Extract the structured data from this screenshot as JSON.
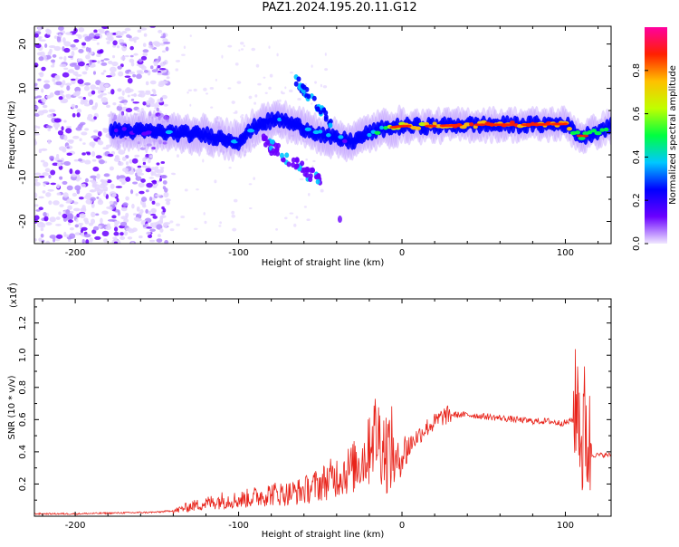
{
  "page": {
    "title": "PAZ1.2024.195.20.11.G12"
  },
  "chart_data": [
    {
      "type": "heatmap",
      "title": "PAZ1.2024.195.20.11.G12",
      "xlabel": "Height of straight line (km)",
      "ylabel": "Frequency (Hz)",
      "xlim": [
        -225,
        128
      ],
      "ylim": [
        -25,
        24
      ],
      "xticks": [
        -200,
        -100,
        0,
        100
      ],
      "xtick_labels": [
        "-200",
        "-100",
        "0",
        "100"
      ],
      "yticks": [
        -20,
        -10,
        0,
        10,
        20
      ],
      "ytick_labels": [
        "-20",
        "-10",
        "0",
        "10",
        "20"
      ],
      "grid": false,
      "colorbar": {
        "label": "Normalized spectral amplitude",
        "range": [
          0.0,
          1.0
        ],
        "ticks": [
          0.0,
          0.2,
          0.4,
          0.6,
          0.8
        ],
        "tick_labels": [
          "0.0",
          "0.2",
          "0.4",
          "0.6",
          "0.8"
        ],
        "colormap": [
          "#f0e8ff",
          "#6a00ff",
          "#0000ff",
          "#00c8ff",
          "#00ff40",
          "#c0ff00",
          "#ffc000",
          "#ff2000",
          "#ff00a0"
        ]
      },
      "ridge": {
        "description_points_x": [
          -175,
          -150,
          -120,
          -100,
          -88,
          -75,
          -60,
          -45,
          -30,
          -20,
          -10,
          0,
          20,
          40,
          60,
          80,
          100,
          110,
          128
        ],
        "frequency_y": [
          0.5,
          0.2,
          -0.5,
          -2,
          2,
          3,
          1,
          -1,
          -2,
          0,
          1,
          1.5,
          1.5,
          1.8,
          1.8,
          1.8,
          2.0,
          -1,
          1.5
        ],
        "amplitude": [
          0.25,
          0.3,
          0.35,
          0.35,
          0.3,
          0.35,
          0.4,
          0.35,
          0.3,
          0.4,
          0.6,
          0.75,
          0.8,
          0.85,
          0.9,
          0.9,
          0.8,
          0.5,
          0.6
        ]
      },
      "branch": {
        "x": [
          -65,
          -55,
          -45
        ],
        "y": [
          12,
          7,
          3
        ]
      },
      "lower_branch": {
        "x": [
          -80,
          -70,
          -55
        ],
        "y": [
          -3,
          -6,
          -10
        ]
      }
    },
    {
      "type": "line",
      "title": "",
      "xlabel": "Height of straight line (km)",
      "ylabel": "SNR (10 * v/v)",
      "y_multiplier_label": "(x10",
      "y_multiplier_exp": "4",
      "xlim": [
        -225,
        128
      ],
      "ylim": [
        0,
        1.35
      ],
      "xticks": [
        -200,
        -100,
        0,
        100
      ],
      "xtick_labels": [
        "-200",
        "-100",
        "0",
        "100"
      ],
      "yticks": [
        0.2,
        0.4,
        0.6,
        0.8,
        1.0,
        1.2
      ],
      "ytick_labels": [
        "0.2",
        "0.4",
        "0.6",
        "0.8",
        "1.0",
        "1.2"
      ],
      "grid": false,
      "series": [
        {
          "color": "#e8231a",
          "x": [
            -225,
            -200,
            -175,
            -150,
            -140,
            -130,
            -120,
            -110,
            -100,
            -90,
            -80,
            -70,
            -60,
            -50,
            -40,
            -30,
            -25,
            -20,
            -15,
            -10,
            -5,
            0,
            5,
            10,
            15,
            20,
            25,
            30,
            40,
            50,
            60,
            70,
            80,
            90,
            95,
            100,
            105,
            108,
            110,
            112,
            114,
            116,
            120,
            128
          ],
          "y": [
            0.01,
            0.01,
            0.015,
            0.02,
            0.03,
            0.06,
            0.08,
            0.1,
            0.1,
            0.12,
            0.14,
            0.14,
            0.16,
            0.2,
            0.25,
            0.3,
            0.35,
            0.4,
            0.4,
            0.3,
            0.3,
            0.38,
            0.45,
            0.5,
            0.55,
            0.58,
            0.62,
            0.63,
            0.63,
            0.62,
            0.61,
            0.6,
            0.59,
            0.59,
            0.58,
            0.58,
            0.6,
            0.75,
            0.4,
            0.6,
            0.45,
            0.38,
            0.38,
            0.38
          ]
        }
      ]
    }
  ]
}
